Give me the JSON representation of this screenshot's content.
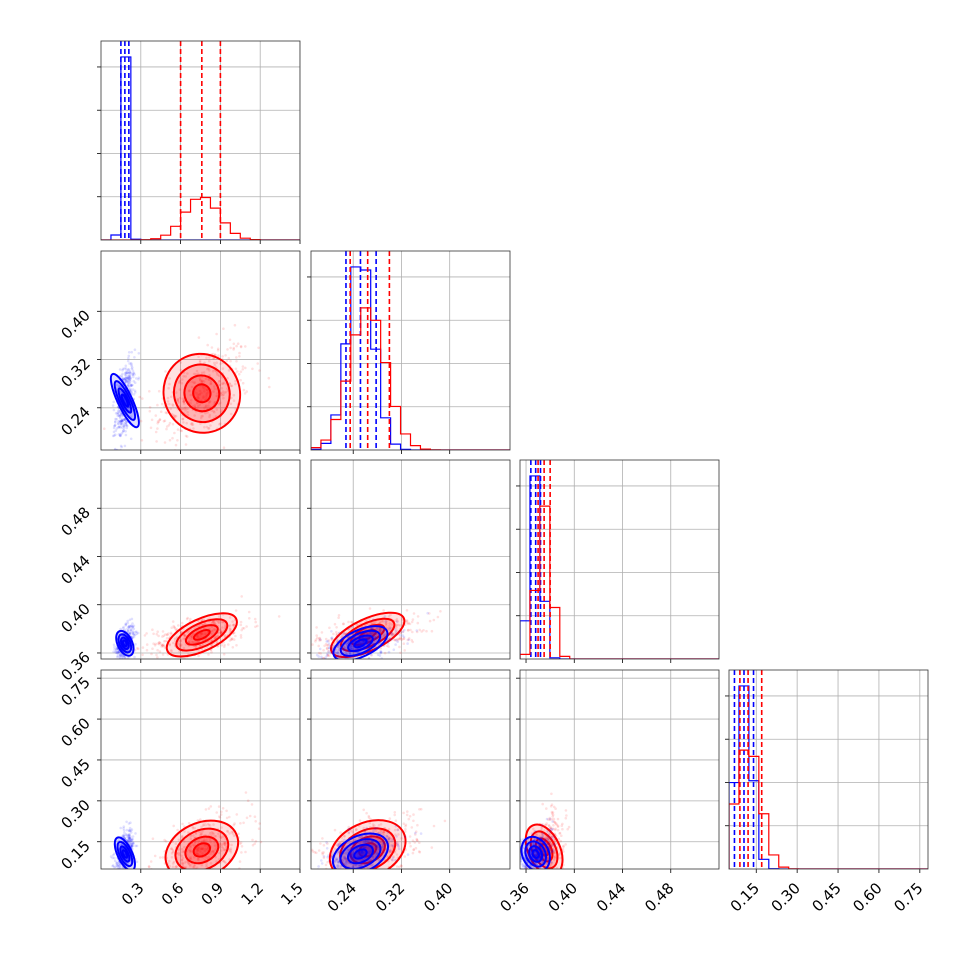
{
  "chart_data": {
    "type": "corner",
    "grid": true,
    "series_colors": {
      "blue": "#0000ff",
      "red": "#ff0000"
    },
    "parameters": [
      {
        "range": [
          0.0,
          1.5
        ],
        "ticks": [
          "0.3",
          "0.6",
          "0.9",
          "1.2",
          "1.5"
        ],
        "tick_values": [
          0.3,
          0.6,
          0.9,
          1.2,
          1.5
        ],
        "show_x_ticks": true,
        "show_y_ticks": false
      },
      {
        "range": [
          0.17,
          0.5
        ],
        "ticks": [
          "0.24",
          "0.32",
          "0.40"
        ],
        "tick_values": [
          0.24,
          0.32,
          0.4
        ],
        "show_x_ticks": true,
        "show_y_ticks": true
      },
      {
        "range": [
          0.355,
          0.52
        ],
        "ticks": [
          "0.36",
          "0.40",
          "0.44",
          "0.48"
        ],
        "tick_values": [
          0.36,
          0.4,
          0.44,
          0.48
        ],
        "show_x_ticks": true,
        "show_y_ticks": true
      },
      {
        "range": [
          0.05,
          0.78
        ],
        "ticks": [
          "0.15",
          "0.30",
          "0.45",
          "0.60",
          "0.75"
        ],
        "tick_values": [
          0.15,
          0.3,
          0.45,
          0.6,
          0.75
        ],
        "show_x_ticks": true,
        "show_y_ticks": true
      }
    ],
    "series": [
      {
        "color": "blue",
        "median": [
          0.18,
          0.252,
          0.368,
          0.105
        ],
        "quantiles_16_50_84": [
          [
            0.15,
            0.18,
            0.21
          ],
          [
            0.228,
            0.252,
            0.278
          ],
          [
            0.364,
            0.368,
            0.372
          ],
          [
            0.07,
            0.105,
            0.14
          ]
        ],
        "sigma": [
          0.025,
          0.022,
          0.005,
          0.03
        ]
      },
      {
        "color": "red",
        "median": [
          0.76,
          0.264,
          0.375,
          0.12
        ],
        "quantiles_16_50_84": [
          [
            0.6,
            0.76,
            0.9
          ],
          [
            0.235,
            0.264,
            0.3
          ],
          [
            0.37,
            0.375,
            0.38
          ],
          [
            0.09,
            0.12,
            0.17
          ]
        ],
        "sigma": [
          0.13,
          0.03,
          0.006,
          0.045
        ]
      }
    ]
  }
}
